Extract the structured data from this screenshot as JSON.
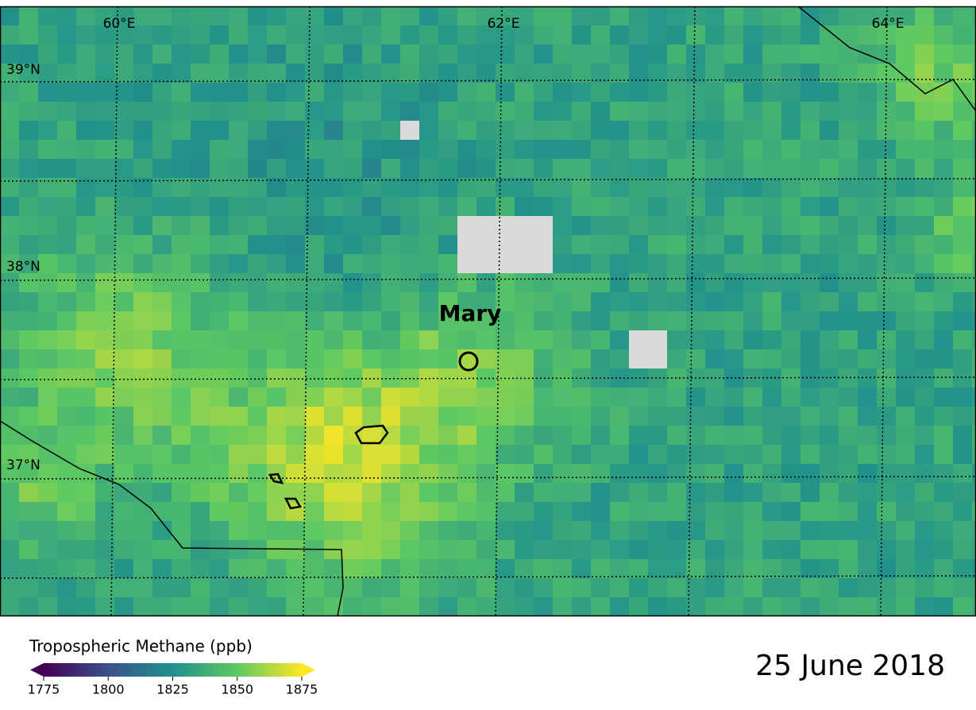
{
  "map": {
    "lon_labels": [
      "60°E",
      "62°E",
      "64°E"
    ],
    "lat_labels": [
      "39°N",
      "38°N",
      "37°N"
    ],
    "city": "Mary"
  },
  "colorbar": {
    "title": "Tropospheric Methane (ppb)",
    "range": [
      1775,
      1875
    ],
    "ticks": [
      1775,
      1800,
      1825,
      1850,
      1875
    ]
  },
  "date": "25 June 2018"
}
